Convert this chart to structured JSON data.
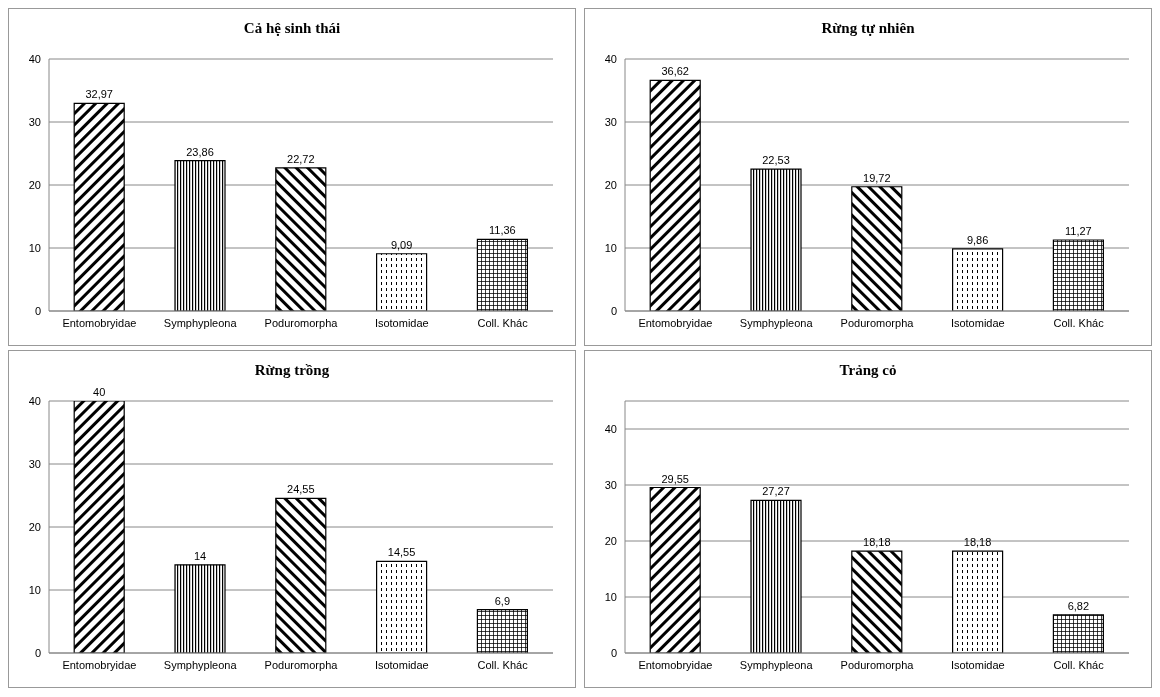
{
  "chart_data": [
    {
      "type": "bar",
      "title": "Cả hệ sinh thái",
      "categories": [
        "Entomobryidae",
        "Symphypleona",
        "Poduromorpha",
        "Isotomidae",
        "Coll. Khác"
      ],
      "values": [
        32.97,
        23.86,
        22.72,
        9.09,
        11.36
      ],
      "value_labels": [
        "32,97",
        "23,86",
        "22,72",
        "9,09",
        "11,36"
      ],
      "color": "#000000",
      "ylim": [
        0,
        40
      ],
      "yticks": [
        0,
        10,
        20,
        30,
        40
      ],
      "grid": "y",
      "legend": false
    },
    {
      "type": "bar",
      "title": "Rừng tự nhiên",
      "categories": [
        "Entomobryidae",
        "Symphypleona",
        "Poduromorpha",
        "Isotomidae",
        "Coll. Khác"
      ],
      "values": [
        36.62,
        22.53,
        19.72,
        9.86,
        11.27
      ],
      "value_labels": [
        "36,62",
        "22,53",
        "19,72",
        "9,86",
        "11,27"
      ],
      "color": "#000000",
      "ylim": [
        0,
        40
      ],
      "yticks": [
        0,
        10,
        20,
        30,
        40
      ],
      "grid": "y",
      "legend": false
    },
    {
      "type": "bar",
      "title": "Rừng trồng",
      "categories": [
        "Entomobryidae",
        "Symphypleona",
        "Poduromorpha",
        "Isotomidae",
        "Coll. Khác"
      ],
      "values": [
        40,
        14,
        24.55,
        14.55,
        6.9
      ],
      "value_labels": [
        "40",
        "14",
        "24,55",
        "14,55",
        "6,9"
      ],
      "color": "#000000",
      "ylim": [
        0,
        40
      ],
      "yticks": [
        0,
        10,
        20,
        30,
        40
      ],
      "grid": "y",
      "legend": false
    },
    {
      "type": "bar",
      "title": "Trảng cỏ",
      "categories": [
        "Entomobryidae",
        "Symphypleona",
        "Poduromorpha",
        "Isotomidae",
        "Coll. Khác"
      ],
      "values": [
        29.55,
        27.27,
        18.18,
        18.18,
        6.82
      ],
      "value_labels": [
        "29,55",
        "27,27",
        "18,18",
        "18,18",
        "6,82"
      ],
      "color": "#000000",
      "ylim": [
        0,
        45
      ],
      "yticks": [
        0,
        10,
        20,
        30,
        40
      ],
      "grid": "y",
      "legend": false
    }
  ]
}
